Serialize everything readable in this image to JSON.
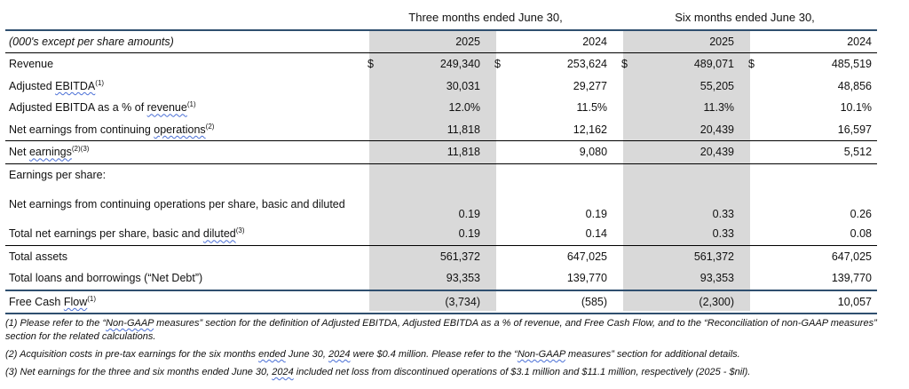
{
  "header": {
    "group_three_months": "Three months ended June 30,",
    "group_six_months": "Six months ended June 30,",
    "units_label": "(000's except per share amounts)",
    "years": [
      "2025",
      "2024",
      "2025",
      "2024"
    ]
  },
  "rows": {
    "revenue": {
      "label": "Revenue",
      "dollar": "$",
      "values": [
        "249,340",
        "253,624",
        "489,071",
        "485,519"
      ]
    },
    "adj_ebitda": {
      "label_pre": "Adjusted ",
      "label_link": "EBITDA",
      "sup": "(1)",
      "values": [
        "30,031",
        "29,277",
        "55,205",
        "48,856"
      ]
    },
    "adj_ebitda_pct": {
      "label_pre": "Adjusted EBITDA as a % of ",
      "label_link": "revenue",
      "sup": "(1)",
      "values": [
        "12.0%",
        "11.5%",
        "11.3%",
        "10.1%"
      ]
    },
    "net_earnings_cont": {
      "label_pre": "Net earnings from continuing ",
      "label_link": "operations",
      "sup": "(2)",
      "values": [
        "11,818",
        "12,162",
        "20,439",
        "16,597"
      ]
    },
    "net_earnings": {
      "label_pre": "Net ",
      "label_link": "earnings",
      "sup": "(2)(3)",
      "values": [
        "11,818",
        "9,080",
        "20,439",
        "5,512"
      ]
    },
    "eps_header": {
      "label": "Earnings per share:"
    },
    "eps_cont": {
      "label": "Net earnings from continuing operations per share, basic and diluted",
      "values": [
        "0.19",
        "0.19",
        "0.33",
        "0.26"
      ]
    },
    "eps_total": {
      "label_pre": "Total net earnings per share, basic and ",
      "label_link": "diluted",
      "sup": "(3)",
      "values": [
        "0.19",
        "0.14",
        "0.33",
        "0.08"
      ]
    },
    "total_assets": {
      "label": "Total assets",
      "values": [
        "561,372",
        "647,025",
        "561,372",
        "647,025"
      ]
    },
    "net_debt": {
      "label": "Total loans and borrowings (“Net Debt”)",
      "values": [
        "93,353",
        "139,770",
        "93,353",
        "139,770"
      ]
    },
    "fcf": {
      "label_pre": "Free Cash ",
      "label_link": "Flow",
      "sup": "(1)",
      "values": [
        "(3,734)",
        "(585)",
        "(2,300)",
        "10,057"
      ]
    }
  },
  "notes": {
    "n1_a": "(1) Please refer to the “",
    "n1_link": "Non-GAAP",
    "n1_b": " measures” section for the definition of Adjusted EBITDA, Adjusted EBITDA as a % of revenue, and Free Cash Flow, and to the “Reconciliation of non-GAAP measures” section for the related calculations.",
    "n2_a": "(2) Acquisition costs in pre-tax earnings for the six months ",
    "n2_link1": "ended",
    "n2_b": " June 30, ",
    "n2_link2": "2024",
    "n2_c": " were $0.4 million. Please refer to the “",
    "n2_link3": "Non-GAAP",
    "n2_d": " measures” section for additional details.",
    "n3_a": "(3) Net earnings for the three and six months ended June 30, ",
    "n3_link": "2024",
    "n3_b": " included net loss from discontinued operations of $3.1 million and $11.1 million, respectively (2025 - $nil)."
  }
}
